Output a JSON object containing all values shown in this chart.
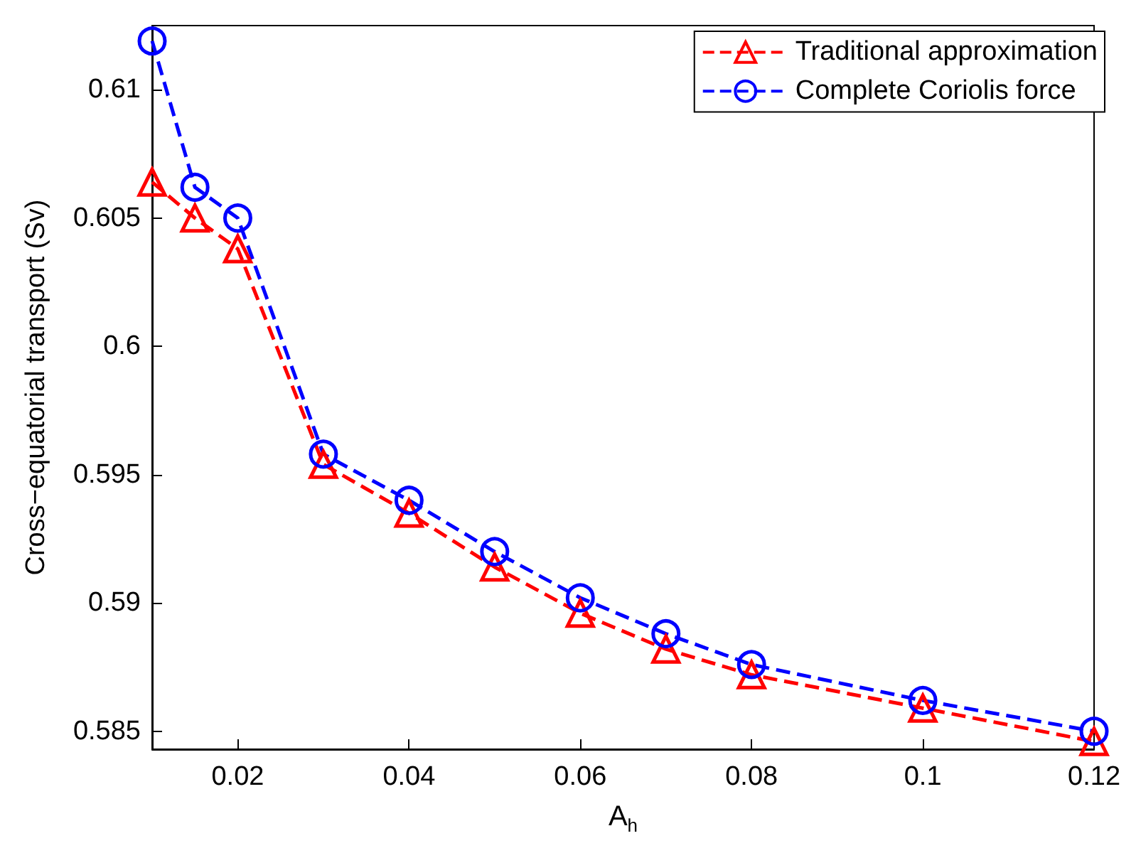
{
  "chart_data": {
    "type": "line",
    "xlabel": "A$_{h}$",
    "ylabel": "Cross−equatorial transport (Sv)",
    "x": [
      0.01,
      0.015,
      0.02,
      0.03,
      0.04,
      0.05,
      0.06,
      0.07,
      0.08,
      0.1,
      0.12
    ],
    "series": [
      {
        "name": "Traditional approximation",
        "color": "#ff0000",
        "marker": "triangle",
        "values": [
          0.6064,
          0.605,
          0.6038,
          0.5954,
          0.5935,
          0.5914,
          0.5896,
          0.5882,
          0.5872,
          0.5859,
          0.5846
        ]
      },
      {
        "name": "Complete Coriolis force",
        "color": "#0000ff",
        "marker": "circle",
        "values": [
          0.6119,
          0.6062,
          0.605,
          0.5958,
          0.594,
          0.592,
          0.5902,
          0.5888,
          0.5876,
          0.5862,
          0.585
        ]
      }
    ],
    "xlim": [
      0.01,
      0.12
    ],
    "xticks": [
      0.02,
      0.04,
      0.06,
      0.08,
      0.1,
      0.12
    ],
    "ylim": [
      0.5843,
      0.6125
    ],
    "yticks": [
      0.585,
      0.59,
      0.595,
      0.6,
      0.605,
      0.61
    ],
    "line_style": "dashed",
    "grid": false,
    "legend": "top right"
  }
}
